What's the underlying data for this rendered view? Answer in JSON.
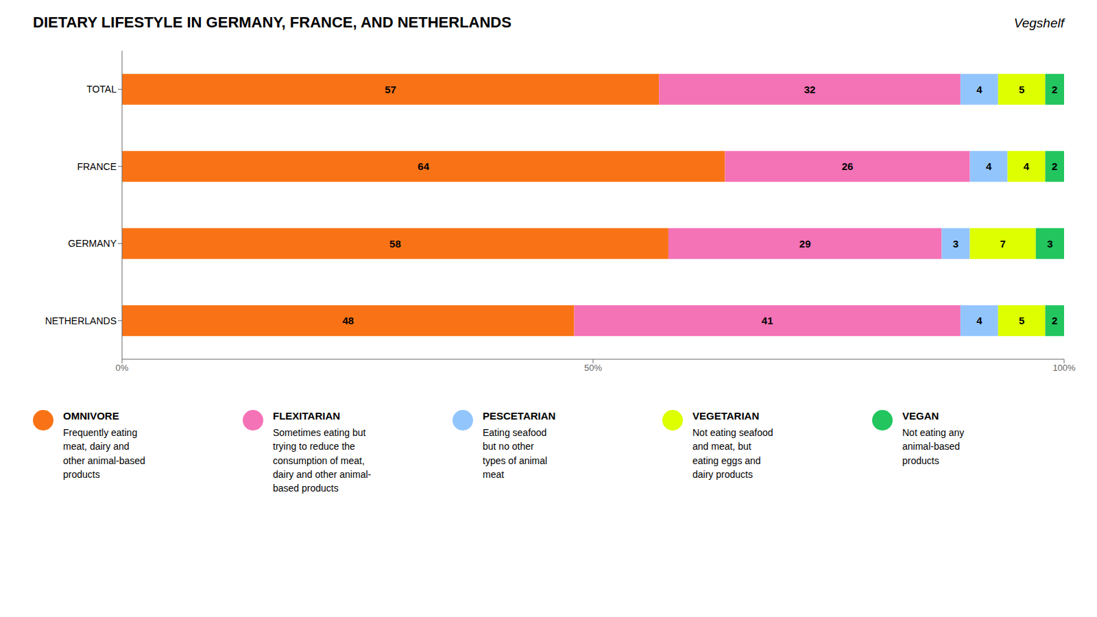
{
  "chart_data": {
    "type": "bar",
    "title": "DIETARY LIFESTYLE IN GERMANY, FRANCE, AND NETHERLANDS",
    "annotations": [
      {
        "text": "Vegshelf"
      }
    ],
    "orientation": "horizontal",
    "stacked": true,
    "data_labels": true,
    "legend": "bottom",
    "grid": false,
    "categories": [
      "TOTAL",
      "FRANCE",
      "GERMANY",
      "NETHERLANDS"
    ],
    "series": [
      {
        "name": "OMNIVORE",
        "color": "#F97316",
        "values": [
          57,
          64,
          58,
          48
        ],
        "description": "Frequently eating\nmeat, dairy and\nother animal-based\nproducts"
      },
      {
        "name": "FLEXITARIAN",
        "color": "#F472B6",
        "values": [
          32,
          26,
          29,
          41
        ],
        "description": "Sometimes eating but\ntrying to reduce the\nconsumption of meat,\ndairy and other animal-\nbased products"
      },
      {
        "name": "PESCETARIAN",
        "color": "#93C5FD",
        "values": [
          4,
          4,
          3,
          4
        ],
        "description": "Eating seafood\nbut no other\ntypes of animal\nmeat"
      },
      {
        "name": "VEGETARIAN",
        "color": "#DDFF00",
        "values": [
          5,
          4,
          7,
          5
        ],
        "description": "Not eating seafood\nand meat, but\neating eggs and\ndairy products"
      },
      {
        "name": "VEGAN",
        "color": "#22C55E",
        "values": [
          2,
          2,
          3,
          2
        ],
        "description": "Not eating any\nanimal-based\nproducts"
      }
    ],
    "xlim": [
      0,
      100
    ],
    "xticks": [
      {
        "value": 0,
        "label": "0%"
      },
      {
        "value": 50,
        "label": "50%"
      },
      {
        "value": 100,
        "label": "100%"
      }
    ]
  }
}
